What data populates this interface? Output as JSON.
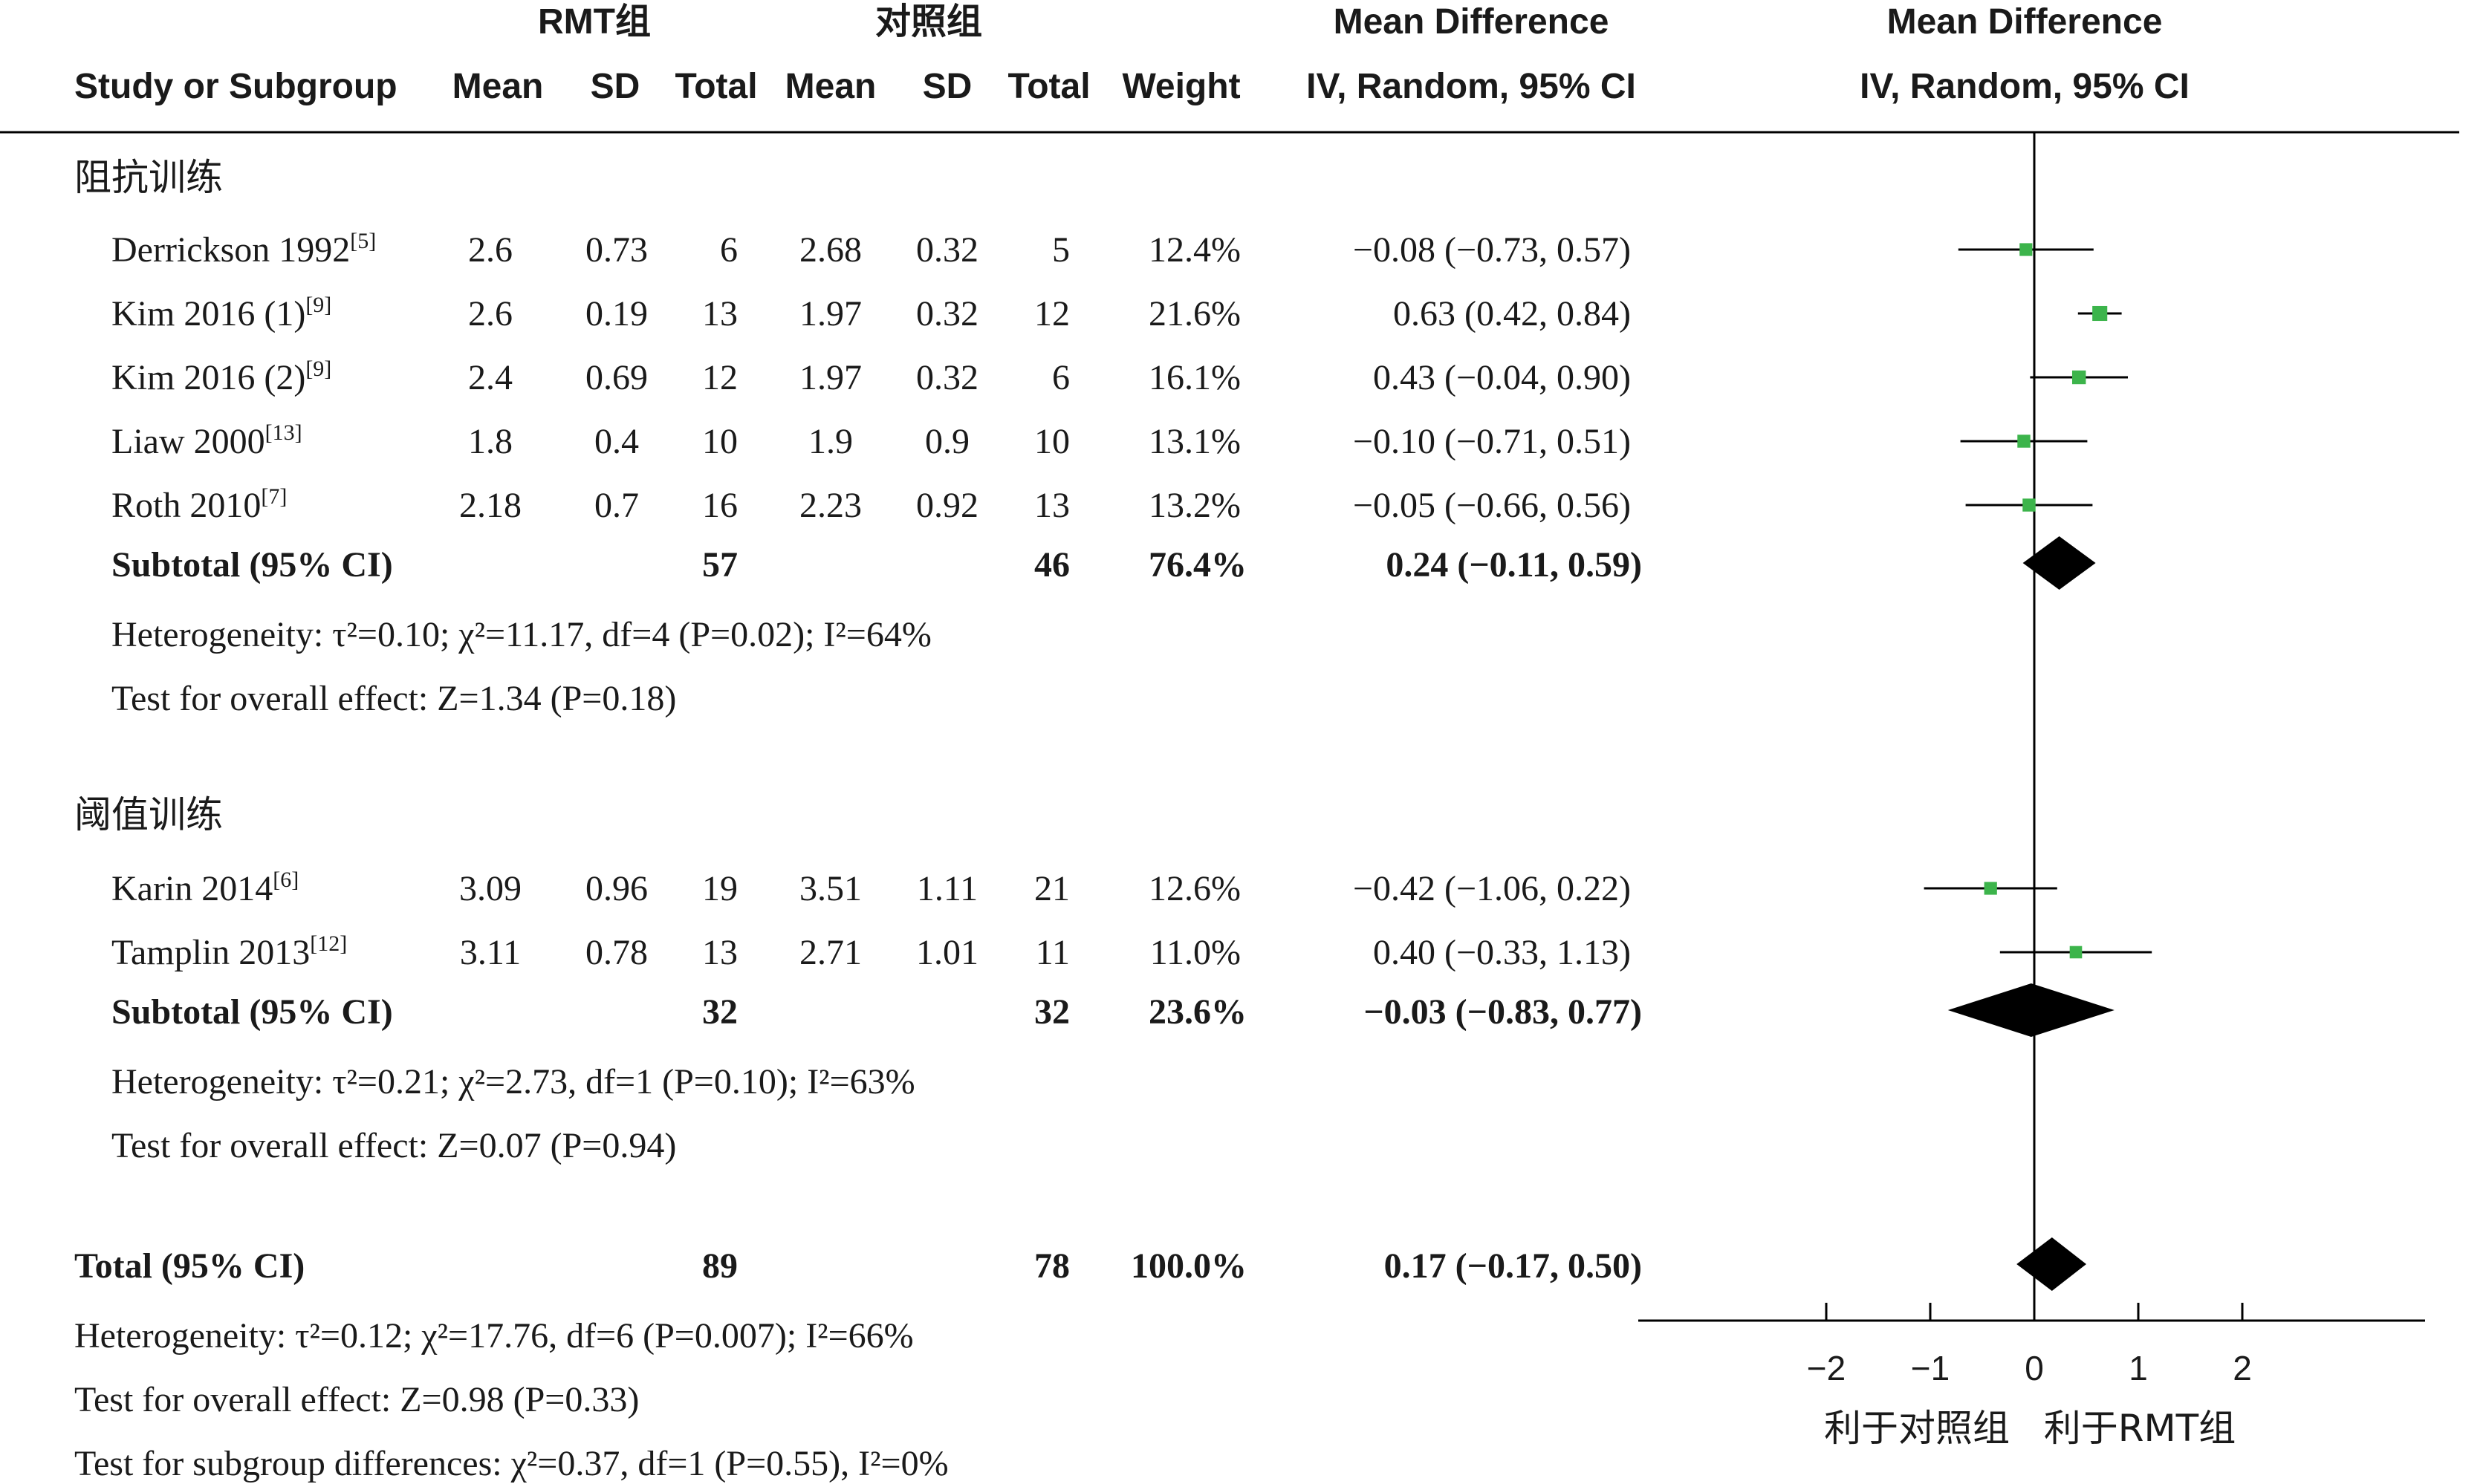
{
  "chart_data": {
    "type": "forest",
    "header": {
      "group1": "RMT组",
      "group2": "对照组",
      "effect_title": "Mean Difference",
      "effect_sub": "IV, Random, 95% CI",
      "plot_title": "Mean Difference",
      "plot_sub": "IV, Random, 95% CI",
      "study_col": "Study or Subgroup",
      "mean": "Mean",
      "sd": "SD",
      "total": "Total",
      "weight": "Weight"
    },
    "subgroups": [
      {
        "name": "阻抗训练",
        "studies": [
          {
            "label": "Derrickson 1992",
            "ref": "[5]",
            "m1": "2.6",
            "sd1": "0.73",
            "n1": "6",
            "m2": "2.68",
            "sd2": "0.32",
            "n2": "5",
            "weight": "12.4%",
            "ci_text": "−0.08 (−0.73, 0.57)",
            "est": -0.08,
            "lo": -0.73,
            "hi": 0.57,
            "w": 12.4
          },
          {
            "label": "Kim 2016 (1)",
            "ref": "[9]",
            "m1": "2.6",
            "sd1": "0.19",
            "n1": "13",
            "m2": "1.97",
            "sd2": "0.32",
            "n2": "12",
            "weight": "21.6%",
            "ci_text": "0.63 (0.42, 0.84)",
            "est": 0.63,
            "lo": 0.42,
            "hi": 0.84,
            "w": 21.6
          },
          {
            "label": "Kim 2016 (2)",
            "ref": "[9]",
            "m1": "2.4",
            "sd1": "0.69",
            "n1": "12",
            "m2": "1.97",
            "sd2": "0.32",
            "n2": "6",
            "weight": "16.1%",
            "ci_text": "0.43 (−0.04, 0.90)",
            "est": 0.43,
            "lo": -0.04,
            "hi": 0.9,
            "w": 16.1
          },
          {
            "label": "Liaw 2000",
            "ref": "[13]",
            "m1": "1.8",
            "sd1": "0.4",
            "n1": "10",
            "m2": "1.9",
            "sd2": "0.9",
            "n2": "10",
            "weight": "13.1%",
            "ci_text": "−0.10 (−0.71, 0.51)",
            "est": -0.1,
            "lo": -0.71,
            "hi": 0.51,
            "w": 13.1
          },
          {
            "label": "Roth 2010",
            "ref": "[7]",
            "m1": "2.18",
            "sd1": "0.7",
            "n1": "16",
            "m2": "2.23",
            "sd2": "0.92",
            "n2": "13",
            "weight": "13.2%",
            "ci_text": "−0.05 (−0.66, 0.56)",
            "est": -0.05,
            "lo": -0.66,
            "hi": 0.56,
            "w": 13.2
          }
        ],
        "subtotal": {
          "label": "Subtotal (95% CI)",
          "n1": "57",
          "n2": "46",
          "weight": "76.4%",
          "ci_text": "0.24 (−0.11, 0.59)",
          "est": 0.24,
          "lo": -0.11,
          "hi": 0.59
        },
        "heterogeneity": "Heterogeneity: τ²=0.10; χ²=11.17, df=4 (P=0.02); I²=64%",
        "overall": "Test for overall effect: Z=1.34 (P=0.18)"
      },
      {
        "name": "阈值训练",
        "studies": [
          {
            "label": "Karin 2014",
            "ref": "[6]",
            "m1": "3.09",
            "sd1": "0.96",
            "n1": "19",
            "m2": "3.51",
            "sd2": "1.11",
            "n2": "21",
            "weight": "12.6%",
            "ci_text": "−0.42 (−1.06, 0.22)",
            "est": -0.42,
            "lo": -1.06,
            "hi": 0.22,
            "w": 12.6
          },
          {
            "label": "Tamplin 2013",
            "ref": "[12]",
            "m1": "3.11",
            "sd1": "0.78",
            "n1": "13",
            "m2": "2.71",
            "sd2": "1.01",
            "n2": "11",
            "weight": "11.0%",
            "ci_text": "0.40 (−0.33, 1.13)",
            "est": 0.4,
            "lo": -0.33,
            "hi": 1.13,
            "w": 11.0
          }
        ],
        "subtotal": {
          "label": "Subtotal (95% CI)",
          "n1": "32",
          "n2": "32",
          "weight": "23.6%",
          "ci_text": "−0.03 (−0.83, 0.77)",
          "est": -0.03,
          "lo": -0.83,
          "hi": 0.77
        },
        "heterogeneity": "Heterogeneity: τ²=0.21; χ²=2.73, df=1 (P=0.10); I²=63%",
        "overall": "Test for overall effect: Z=0.07 (P=0.94)"
      }
    ],
    "total": {
      "label": "Total (95% CI)",
      "n1": "89",
      "n2": "78",
      "weight": "100.0%",
      "ci_text": "0.17 (−0.17, 0.50)",
      "est": 0.17,
      "lo": -0.17,
      "hi": 0.5
    },
    "footer": [
      "Heterogeneity: τ²=0.12; χ²=17.76, df=6 (P=0.007); I²=66%",
      "Test for overall effect: Z=0.98 (P=0.33)",
      "Test for subgroup differences: χ²=0.37, df=1 (P=0.55), I²=0%"
    ],
    "xaxis": {
      "ticks": [
        -2,
        -1,
        0,
        1,
        2
      ],
      "tick_labels": [
        "−2",
        "−1",
        "0",
        "1",
        "2"
      ],
      "xlim": [
        -3.8,
        3.8
      ]
    },
    "favours": {
      "left": "利于对照组",
      "right": "利于RMT组"
    },
    "colors": {
      "box": "#3cb44b",
      "diamond": "#000000",
      "line": "#000000",
      "text": "#1a1a1a"
    }
  }
}
